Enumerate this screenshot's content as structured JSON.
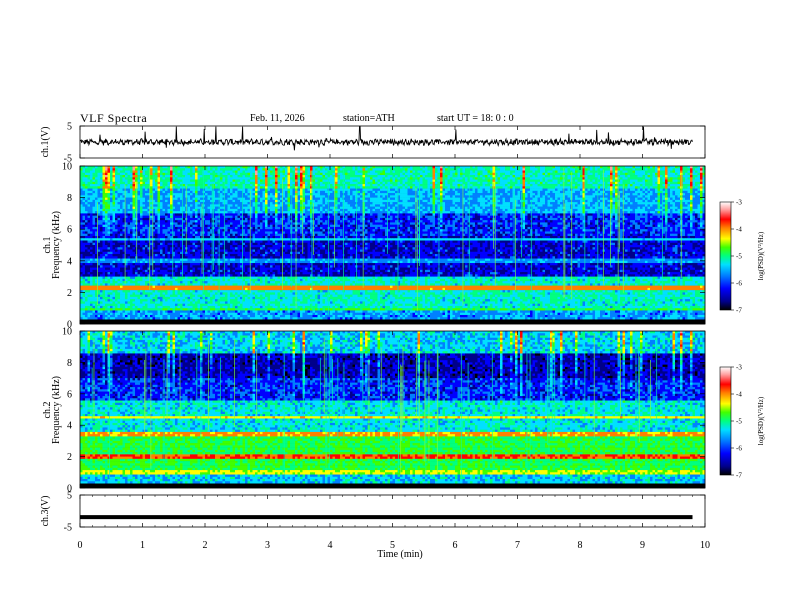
{
  "header": {
    "title": "VLF  Spectra",
    "date": "Feb. 11, 2026",
    "station": "station=ATH",
    "start": "start  UT  =   18: 0  : 0"
  },
  "chart_data": [
    {
      "type": "line",
      "id": "ch1-waveform",
      "ylabel": "ch.1(V)",
      "ylim": [
        -5,
        5
      ],
      "yticks": [
        "5",
        "-5"
      ],
      "xlim": [
        0,
        10
      ],
      "description": "time series, noise about 0 V with spikes up to 5 V"
    },
    {
      "type": "heatmap",
      "id": "ch1-spectrogram",
      "ylabel": "ch.1\nFrequency (kHz)",
      "ylim": [
        0,
        10
      ],
      "yticks": [
        "0",
        "2",
        "4",
        "6",
        "8",
        "10"
      ],
      "xlim": [
        0,
        10
      ],
      "colorbar": {
        "label": "log(PSD)(V²/Hz)",
        "range": [
          -7,
          -3
        ],
        "ticks": [
          "-3",
          "-4",
          "-5",
          "-6",
          "-7"
        ]
      }
    },
    {
      "type": "heatmap",
      "id": "ch2-spectrogram",
      "ylabel": "ch.2\nFrequency (kHz)",
      "ylim": [
        0,
        10
      ],
      "yticks": [
        "0",
        "2",
        "4",
        "6",
        "8",
        "10"
      ],
      "xlim": [
        0,
        10
      ],
      "colorbar": {
        "label": "log(PSD)(V²/Hz)",
        "range": [
          -7,
          -3
        ],
        "ticks": [
          "-3",
          "-4",
          "-5",
          "-6",
          "-7"
        ]
      }
    },
    {
      "type": "line",
      "id": "ch3-waveform",
      "ylabel": "ch.3(V)",
      "ylim": [
        -5,
        5
      ],
      "yticks": [
        "5",
        "-5"
      ],
      "xlim": [
        0,
        10
      ],
      "description": "flat line near -2 V"
    }
  ],
  "xaxis": {
    "label": "Time  (min)",
    "ticks": [
      "0",
      "1",
      "2",
      "3",
      "4",
      "5",
      "6",
      "7",
      "8",
      "9",
      "10"
    ],
    "range": [
      0,
      10
    ]
  },
  "colors": {
    "colormap": [
      "#000000",
      "#00008b",
      "#0000ff",
      "#0080ff",
      "#00e0ff",
      "#00ff80",
      "#40ff00",
      "#ffff00",
      "#ff8000",
      "#ff0000",
      "#ffa0a0",
      "#ffffff"
    ]
  }
}
